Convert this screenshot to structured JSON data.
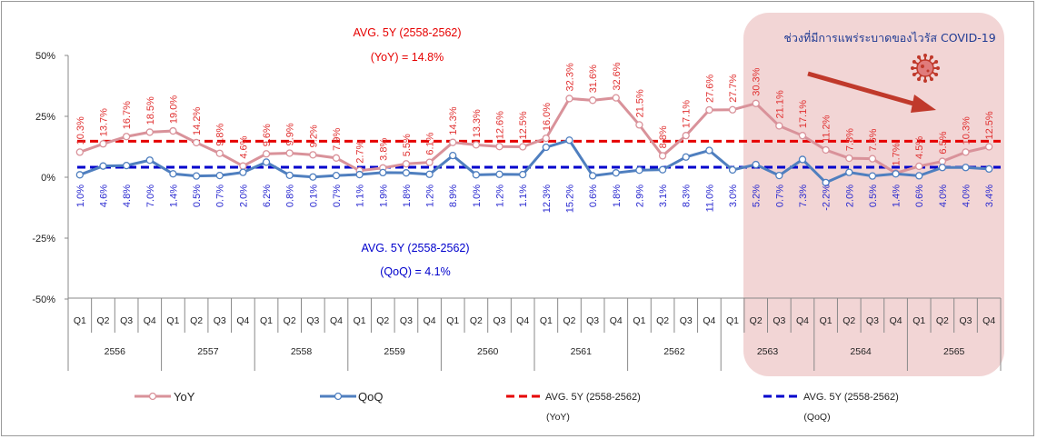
{
  "chart_data": {
    "type": "line",
    "quarters": [
      "Q1",
      "Q2",
      "Q3",
      "Q4",
      "Q1",
      "Q2",
      "Q3",
      "Q4",
      "Q1",
      "Q2",
      "Q3",
      "Q4",
      "Q1",
      "Q2",
      "Q3",
      "Q4",
      "Q1",
      "Q2",
      "Q3",
      "Q4",
      "Q1",
      "Q2",
      "Q3",
      "Q4",
      "Q1",
      "Q2",
      "Q3",
      "Q4",
      "Q1",
      "Q2",
      "Q3",
      "Q4",
      "Q1",
      "Q2",
      "Q3",
      "Q4",
      "Q1",
      "Q2",
      "Q3",
      "Q4"
    ],
    "years": [
      "2556",
      "2557",
      "2558",
      "2559",
      "2560",
      "2561",
      "2562",
      "2563",
      "2564",
      "2565"
    ],
    "series": [
      {
        "name": "YoY",
        "color": "#d9929a",
        "label_color": "#e03030",
        "values": [
          10.3,
          13.7,
          16.7,
          18.5,
          19.0,
          14.2,
          9.8,
          4.6,
          9.6,
          9.9,
          9.2,
          7.9,
          2.7,
          3.8,
          5.5,
          6.1,
          14.3,
          13.3,
          12.6,
          12.5,
          16.0,
          32.3,
          31.6,
          32.6,
          21.5,
          8.8,
          17.1,
          27.6,
          27.7,
          30.3,
          21.1,
          17.1,
          11.2,
          7.8,
          7.6,
          1.7,
          4.5,
          6.5,
          10.3,
          12.5
        ],
        "labels": [
          "10.3%",
          "13.7%",
          "16.7%",
          "18.5%",
          "19.0%",
          "14.2%",
          "9.8%",
          "4.6%",
          "9.6%",
          "9.9%",
          "9.2%",
          "7.9%",
          "2.7%",
          "3.8%",
          "5.5%",
          "6.1%",
          "14.3%",
          "13.3%",
          "12.6%",
          "12.5%",
          "16.0%",
          "32.3%",
          "31.6%",
          "32.6%",
          "21.5%",
          "8.8%",
          "17.1%",
          "27.6%",
          "27.7%",
          "30.3%",
          "21.1%",
          "17.1%",
          "11.2%",
          "7.8%",
          "7.6%",
          "1.7%",
          "4.5%",
          "6.5%",
          "10.3%",
          "12.5%"
        ]
      },
      {
        "name": "QoQ",
        "color": "#4f7fbf",
        "label_color": "#2a2ad0",
        "values": [
          1.0,
          4.6,
          4.8,
          7.0,
          1.4,
          0.5,
          0.7,
          2.0,
          6.2,
          0.8,
          0.1,
          0.7,
          1.1,
          1.9,
          1.8,
          1.2,
          8.9,
          1.0,
          1.2,
          1.1,
          12.3,
          15.2,
          0.6,
          1.8,
          2.9,
          3.1,
          8.3,
          11.0,
          3.0,
          5.2,
          0.7,
          7.3,
          -2.2,
          2.0,
          0.5,
          1.4,
          0.6,
          4.0,
          4.0,
          3.4
        ],
        "labels": [
          "1.0%",
          "4.6%",
          "4.8%",
          "7.0%",
          "1.4%",
          "0.5%",
          "0.7%",
          "2.0%",
          "6.2%",
          "0.8%",
          "0.1%",
          "0.7%",
          "1.1%",
          "1.9%",
          "1.8%",
          "1.2%",
          "8.9%",
          "1.0%",
          "1.2%",
          "1.1%",
          "12.3%",
          "15.2%",
          "0.6%",
          "1.8%",
          "2.9%",
          "3.1%",
          "8.3%",
          "11.0%",
          "3.0%",
          "5.2%",
          "0.7%",
          "7.3%",
          "-2.2%",
          "2.0%",
          "0.5%",
          "1.4%",
          "0.6%",
          "4.0%",
          "4.0%",
          "3.4%"
        ]
      }
    ],
    "averages": [
      {
        "value": 14.8,
        "color": "#e60000",
        "label_line1": "AVG. 5Y (2558-2562)",
        "label_line2": "(YoY) = 14.8%"
      },
      {
        "value": 4.1,
        "color": "#0000cc",
        "label_line1": "AVG. 5Y (2558-2562)",
        "label_line2": "(QoQ) = 4.1%"
      }
    ],
    "y_ticks": [
      "50%",
      "25%",
      "0%",
      "-25%",
      "-50%"
    ],
    "y_tick_values": [
      50,
      25,
      0,
      -25,
      -50
    ],
    "ylim": [
      -50,
      50
    ],
    "grid": false,
    "highlight": {
      "text": "ช่วงที่มีการแพร่ระบาดของไวรัส COVID-19",
      "color": "#f2d5d5",
      "text_color": "#1f3a93",
      "arrow_color": "#c0392b",
      "icon": "virus-icon"
    },
    "legend": {
      "position": "bottom",
      "items": [
        {
          "label": "YoY",
          "kind": "series-line",
          "color": "#d9929a"
        },
        {
          "label": "QoQ",
          "kind": "series-line",
          "color": "#4f7fbf"
        },
        {
          "label": "AVG. 5Y (2558-2562)",
          "sub": "(YoY)",
          "kind": "dashed",
          "color": "#e60000"
        },
        {
          "label": "AVG. 5Y (2558-2562)",
          "sub": "(QoQ)",
          "kind": "dashed",
          "color": "#0000cc"
        }
      ]
    }
  }
}
